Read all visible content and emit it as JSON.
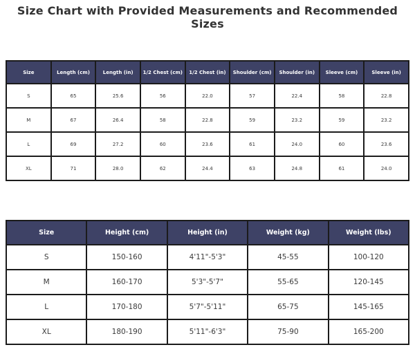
{
  "title": "Size Chart with Provided Measurements and Recommended Sizes",
  "colors": {
    "header_bg": "#3e4266",
    "header_text": "#ffffff",
    "cell_bg": "#ffffff",
    "cell_text": "#3a3a3a",
    "border": "#1b1b1b",
    "title_text": "#333333"
  },
  "chart_data": [
    {
      "type": "table",
      "name": "provided_measurements",
      "columns": [
        "Size",
        "Length (cm)",
        "Length (in)",
        "1/2 Chest (cm)",
        "1/2 Chest (in)",
        "Shoulder (cm)",
        "Shoulder (in)",
        "Sleeve (cm)",
        "Sleeve (in)"
      ],
      "rows": [
        [
          "S",
          "65",
          "25.6",
          "56",
          "22.0",
          "57",
          "22.4",
          "58",
          "22.8"
        ],
        [
          "M",
          "67",
          "26.4",
          "58",
          "22.8",
          "59",
          "23.2",
          "59",
          "23.2"
        ],
        [
          "L",
          "69",
          "27.2",
          "60",
          "23.6",
          "61",
          "24.0",
          "60",
          "23.6"
        ],
        [
          "XL",
          "71",
          "28.0",
          "62",
          "24.4",
          "63",
          "24.8",
          "61",
          "24.0"
        ]
      ]
    },
    {
      "type": "table",
      "name": "recommended_sizes",
      "columns": [
        "Size",
        "Height (cm)",
        "Height (in)",
        "Weight (kg)",
        "Weight (lbs)"
      ],
      "rows": [
        [
          "S",
          "150-160",
          "4'11\"-5'3\"",
          "45-55",
          "100-120"
        ],
        [
          "M",
          "160-170",
          "5'3\"-5'7\"",
          "55-65",
          "120-145"
        ],
        [
          "L",
          "170-180",
          "5'7\"-5'11\"",
          "65-75",
          "145-165"
        ],
        [
          "XL",
          "180-190",
          "5'11\"-6'3\"",
          "75-90",
          "165-200"
        ]
      ]
    }
  ]
}
